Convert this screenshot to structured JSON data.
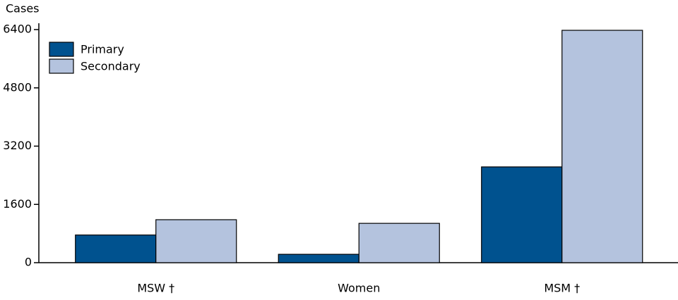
{
  "chart_data": {
    "type": "bar",
    "y_label": "Cases",
    "categories": [
      "MSW †",
      "Women",
      "MSM †"
    ],
    "series": [
      {
        "name": "Primary",
        "color": "#00528f",
        "values": [
          760,
          230,
          2630
        ]
      },
      {
        "name": "Secondary",
        "color": "#b4c3de",
        "values": [
          1180,
          1080,
          6380
        ]
      }
    ],
    "ylim": [
      0,
      6400
    ],
    "yticks": [
      0,
      1600,
      3200,
      4800,
      6400
    ],
    "grid": false,
    "legend": "top-left"
  }
}
